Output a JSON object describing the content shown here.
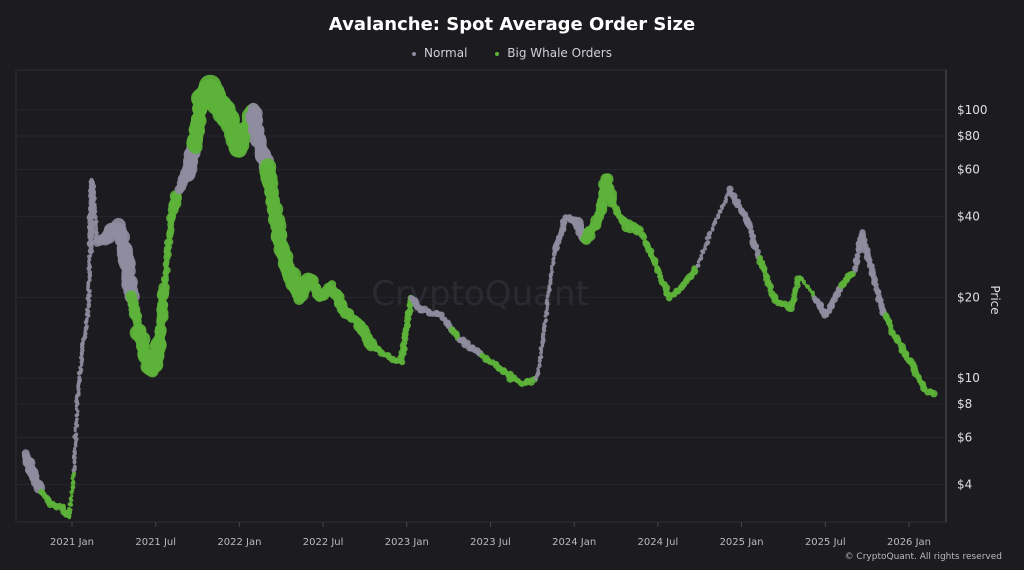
{
  "chart_data": {
    "type": "scatter",
    "title": "Avalanche: Spot Average Order Size",
    "ylabel": "Price",
    "y_scale": "log",
    "ylim": [
      2.8,
      150
    ],
    "y_ticks": [
      4,
      6,
      8,
      10,
      20,
      40,
      60,
      80,
      100
    ],
    "y_tick_labels": [
      "$4",
      "$6",
      "$8",
      "$10",
      "$20",
      "$40",
      "$60",
      "$80",
      "$100"
    ],
    "x_ticks": [
      "2021-01-01",
      "2021-07-01",
      "2022-01-01",
      "2022-07-01",
      "2023-01-01",
      "2023-07-01",
      "2024-01-01",
      "2024-07-01",
      "2025-01-01",
      "2025-07-01",
      "2026-01-01"
    ],
    "x_tick_labels": [
      "2021 Jan",
      "2021 Jul",
      "2022 Jan",
      "2022 Jul",
      "2023 Jan",
      "2023 Jul",
      "2024 Jan",
      "2024 Jul",
      "2025 Jan",
      "2025 Jul",
      "2026 Jan"
    ],
    "legend_position": "top-center",
    "grid": true,
    "series": [
      {
        "name": "Normal",
        "key": "n",
        "color": "#8e8c9e"
      },
      {
        "name": "Big Whale Orders",
        "key": "w",
        "color": "#5db33a"
      }
    ],
    "point_fields": [
      "date",
      "price",
      "series",
      "order_size_level"
    ],
    "points": [
      [
        "2020-09-20",
        5.2,
        "n",
        3
      ],
      [
        "2020-10-10",
        4.3,
        "n",
        3
      ],
      [
        "2020-10-25",
        3.8,
        "w",
        2
      ],
      [
        "2020-11-15",
        3.4,
        "w",
        2
      ],
      [
        "2020-12-10",
        3.3,
        "w",
        2
      ],
      [
        "2020-12-25",
        3.0,
        "w",
        1
      ],
      [
        "2021-01-05",
        4.5,
        "n",
        1
      ],
      [
        "2021-01-15",
        9.5,
        "n",
        1
      ],
      [
        "2021-01-25",
        13,
        "n",
        1
      ],
      [
        "2021-02-05",
        17,
        "n",
        1
      ],
      [
        "2021-02-10",
        30,
        "n",
        2
      ],
      [
        "2021-02-15",
        55,
        "n",
        1
      ],
      [
        "2021-02-25",
        32,
        "n",
        3
      ],
      [
        "2021-03-20",
        34,
        "n",
        4
      ],
      [
        "2021-04-10",
        36,
        "n",
        4
      ],
      [
        "2021-04-25",
        30,
        "n",
        4
      ],
      [
        "2021-05-10",
        20,
        "w",
        3
      ],
      [
        "2021-05-25",
        15,
        "w",
        4
      ],
      [
        "2021-06-10",
        12,
        "w",
        4
      ],
      [
        "2021-06-25",
        10.5,
        "w",
        4
      ],
      [
        "2021-07-10",
        14,
        "w",
        3
      ],
      [
        "2021-07-20",
        22,
        "w",
        2
      ],
      [
        "2021-08-05",
        40,
        "w",
        3
      ],
      [
        "2021-08-20",
        50,
        "n",
        3
      ],
      [
        "2021-09-10",
        58,
        "n",
        4
      ],
      [
        "2021-09-25",
        75,
        "w",
        4
      ],
      [
        "2021-10-10",
        110,
        "w",
        5
      ],
      [
        "2021-10-30",
        120,
        "w",
        5
      ],
      [
        "2021-11-25",
        100,
        "w",
        5
      ],
      [
        "2021-12-15",
        85,
        "w",
        4
      ],
      [
        "2021-12-30",
        70,
        "w",
        4
      ],
      [
        "2022-01-15",
        85,
        "w",
        4
      ],
      [
        "2022-02-01",
        100,
        "n",
        4
      ],
      [
        "2022-02-15",
        75,
        "n",
        4
      ],
      [
        "2022-03-01",
        60,
        "w",
        4
      ],
      [
        "2022-03-15",
        45,
        "w",
        4
      ],
      [
        "2022-04-01",
        30,
        "w",
        4
      ],
      [
        "2022-04-20",
        25,
        "w",
        4
      ],
      [
        "2022-05-10",
        20,
        "w",
        4
      ],
      [
        "2022-06-01",
        24,
        "w",
        3
      ],
      [
        "2022-06-25",
        20,
        "w",
        3
      ],
      [
        "2022-07-20",
        22,
        "w",
        3
      ],
      [
        "2022-08-15",
        18,
        "w",
        3
      ],
      [
        "2022-09-20",
        16,
        "w",
        3
      ],
      [
        "2022-10-20",
        13,
        "w",
        2
      ],
      [
        "2022-11-20",
        12,
        "w",
        2
      ],
      [
        "2022-12-20",
        11.5,
        "w",
        2
      ],
      [
        "2023-01-10",
        20,
        "n",
        2
      ],
      [
        "2023-02-01",
        18,
        "n",
        2
      ],
      [
        "2023-03-15",
        17,
        "n",
        2
      ],
      [
        "2023-04-10",
        15,
        "w",
        2
      ],
      [
        "2023-04-25",
        14,
        "n",
        2
      ],
      [
        "2023-05-20",
        13,
        "n",
        2
      ],
      [
        "2023-06-15",
        12,
        "w",
        2
      ],
      [
        "2023-07-20",
        11,
        "w",
        2
      ],
      [
        "2023-08-15",
        10,
        "w",
        2
      ],
      [
        "2023-09-15",
        9.5,
        "w",
        2
      ],
      [
        "2023-10-10",
        10,
        "n",
        1
      ],
      [
        "2023-10-25",
        14,
        "n",
        1
      ],
      [
        "2023-11-05",
        20,
        "n",
        1
      ],
      [
        "2023-11-20",
        30,
        "n",
        2
      ],
      [
        "2023-12-15",
        40,
        "n",
        2
      ],
      [
        "2024-01-05",
        38,
        "n",
        3
      ],
      [
        "2024-01-25",
        33,
        "w",
        3
      ],
      [
        "2024-02-25",
        40,
        "w",
        3
      ],
      [
        "2024-03-10",
        55,
        "w",
        3
      ],
      [
        "2024-03-25",
        45,
        "w",
        2
      ],
      [
        "2024-04-15",
        38,
        "w",
        3
      ],
      [
        "2024-05-25",
        35,
        "w",
        2
      ],
      [
        "2024-06-25",
        27,
        "w",
        2
      ],
      [
        "2024-07-25",
        20,
        "w",
        2
      ],
      [
        "2024-08-25",
        22,
        "w",
        2
      ],
      [
        "2024-09-25",
        26,
        "n",
        1
      ],
      [
        "2024-10-25",
        35,
        "n",
        1
      ],
      [
        "2024-12-05",
        50,
        "n",
        2
      ],
      [
        "2025-01-10",
        40,
        "n",
        2
      ],
      [
        "2025-02-10",
        28,
        "w",
        2
      ],
      [
        "2025-03-10",
        20,
        "w",
        2
      ],
      [
        "2025-04-15",
        18,
        "w",
        2
      ],
      [
        "2025-05-05",
        24,
        "w",
        1
      ],
      [
        "2025-06-10",
        20,
        "n",
        2
      ],
      [
        "2025-07-01",
        17,
        "n",
        2
      ],
      [
        "2025-08-05",
        22,
        "w",
        2
      ],
      [
        "2025-09-05",
        25,
        "n",
        2
      ],
      [
        "2025-09-20",
        35,
        "n",
        2
      ],
      [
        "2025-10-20",
        22,
        "n",
        2
      ],
      [
        "2025-11-10",
        17,
        "w",
        2
      ],
      [
        "2025-12-15",
        13,
        "w",
        2
      ],
      [
        "2026-01-10",
        11,
        "w",
        2
      ],
      [
        "2026-02-05",
        9,
        "w",
        2
      ],
      [
        "2026-02-25",
        8.8,
        "w",
        2
      ]
    ]
  },
  "watermark": "CryptoQuant",
  "copyright": "© CryptoQuant. All rights reserved"
}
